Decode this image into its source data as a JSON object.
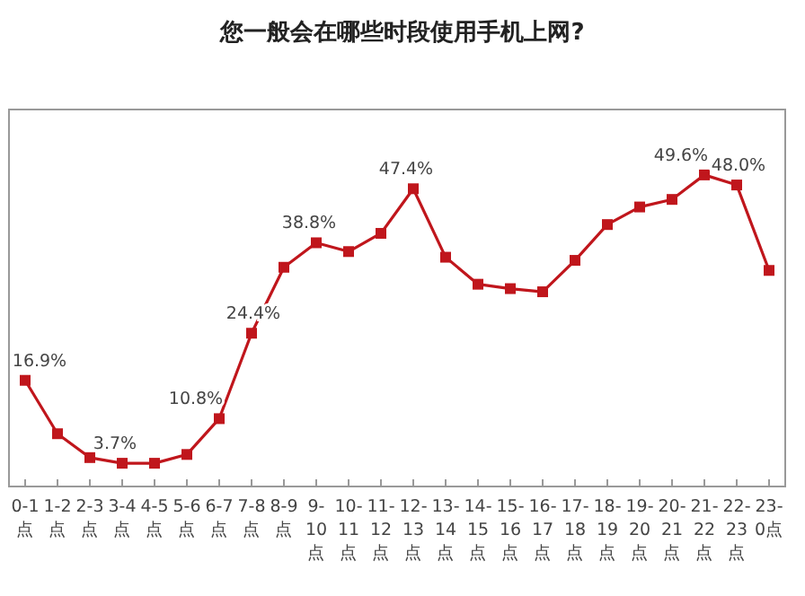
{
  "chart_data": {
    "type": "line",
    "title": "您一般会在哪些时段使用手机上网?",
    "categories": [
      "0-1点",
      "1-2点",
      "2-3点",
      "3-4点",
      "4-5点",
      "5-6点",
      "6-7点",
      "7-8点",
      "8-9点",
      "9-10点",
      "10-11点",
      "11-12点",
      "12-13点",
      "13-14点",
      "14-15点",
      "15-16点",
      "16-17点",
      "17-18点",
      "18-19点",
      "19-20点",
      "20-21点",
      "21-22点",
      "22-23点",
      "23-0点"
    ],
    "series": [
      {
        "color": "#c0161c",
        "values": [
          16.9,
          8.4,
          4.6,
          3.7,
          3.7,
          5.1,
          10.8,
          24.4,
          34.9,
          38.8,
          37.4,
          40.3,
          47.4,
          36.5,
          32.2,
          31.5,
          31.0,
          36.0,
          41.7,
          44.5,
          45.7,
          49.6,
          48.0,
          34.4
        ],
        "value_labels": [
          "16.9%",
          null,
          null,
          "3.7%",
          null,
          null,
          "10.8%",
          "24.4%",
          null,
          "38.8%",
          null,
          null,
          "47.4%",
          null,
          null,
          null,
          null,
          null,
          null,
          null,
          null,
          "49.6%",
          "48.0%",
          null
        ]
      }
    ],
    "marker": "square",
    "line_style": "solid"
  }
}
